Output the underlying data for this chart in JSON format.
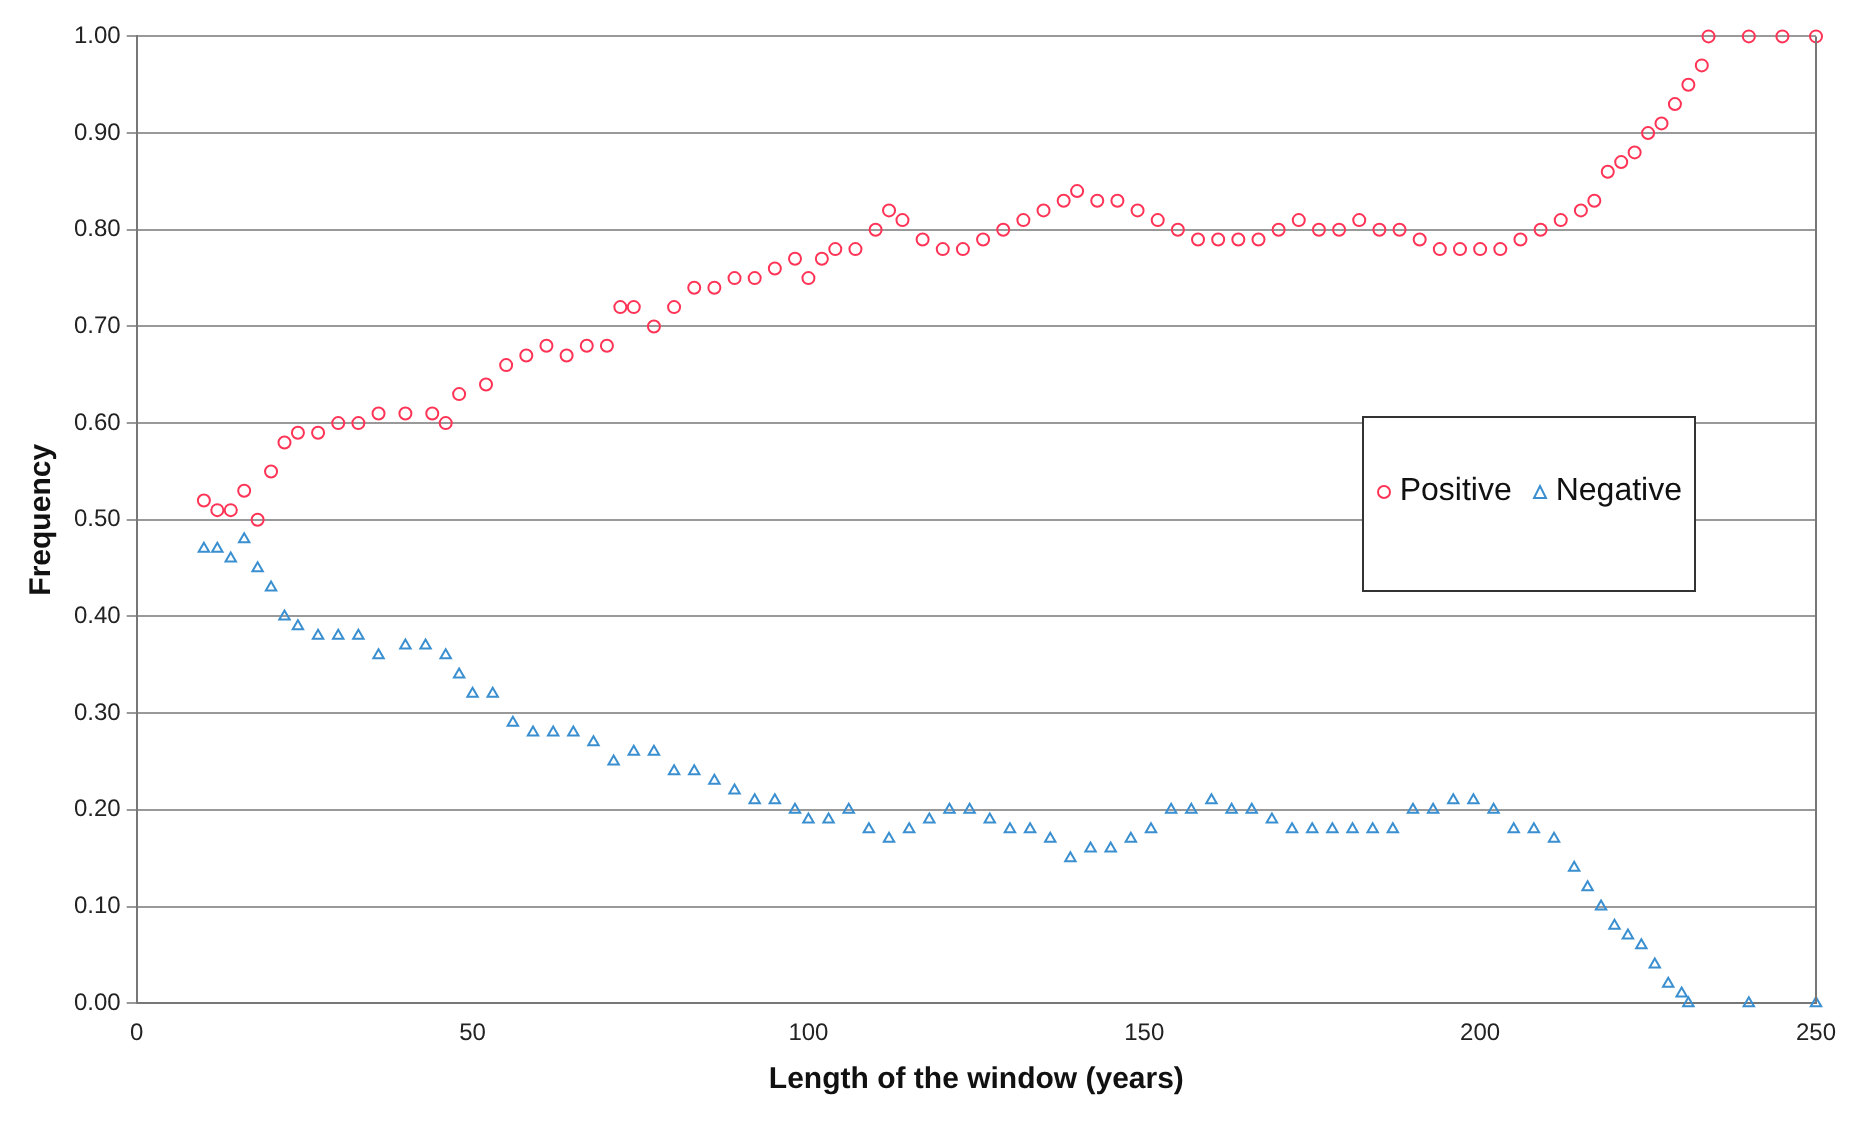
{
  "chart_data": {
    "type": "scatter",
    "xlabel": "Length of the window (years)",
    "ylabel": "Frequency",
    "xlim": [
      0,
      250
    ],
    "xticks": [
      0,
      50,
      100,
      150,
      200,
      250
    ],
    "ylim": [
      0,
      1
    ],
    "yticks": [
      {
        "value": 0,
        "label": "0.00"
      },
      {
        "value": 0.1,
        "label": "0.10"
      },
      {
        "value": 0.2,
        "label": "0.20"
      },
      {
        "value": 0.3,
        "label": "0.30"
      },
      {
        "value": 0.4,
        "label": "0.40"
      },
      {
        "value": 0.5,
        "label": "0.50"
      },
      {
        "value": 0.6,
        "label": "0.60"
      },
      {
        "value": 0.7,
        "label": "0.70"
      },
      {
        "value": 0.8,
        "label": "0.80"
      },
      {
        "value": 0.9,
        "label": "0.90"
      },
      {
        "value": 1,
        "label": "1.00"
      }
    ],
    "grid": "y",
    "legend": "right",
    "series": [
      {
        "name": "Positive",
        "color": "#ff3355",
        "marker": "circle",
        "x": [
          10,
          12,
          14,
          16,
          18,
          20,
          22,
          24,
          27,
          30,
          33,
          36,
          40,
          44,
          46,
          48,
          52,
          55,
          58,
          61,
          64,
          67,
          70,
          72,
          74,
          77,
          80,
          83,
          86,
          89,
          92,
          95,
          98,
          100,
          102,
          104,
          107,
          110,
          112,
          114,
          117,
          120,
          123,
          126,
          129,
          132,
          135,
          138,
          140,
          143,
          146,
          149,
          152,
          155,
          158,
          161,
          164,
          167,
          170,
          173,
          176,
          179,
          182,
          185,
          188,
          191,
          194,
          197,
          200,
          203,
          206,
          209,
          212,
          215,
          217,
          219,
          221,
          223,
          225,
          227,
          229,
          231,
          233,
          234,
          240,
          245,
          250
        ],
        "values": [
          0.52,
          0.51,
          0.51,
          0.53,
          0.5,
          0.55,
          0.58,
          0.59,
          0.59,
          0.6,
          0.6,
          0.61,
          0.61,
          0.61,
          0.6,
          0.63,
          0.64,
          0.66,
          0.67,
          0.68,
          0.67,
          0.68,
          0.68,
          0.72,
          0.72,
          0.7,
          0.72,
          0.74,
          0.74,
          0.75,
          0.75,
          0.76,
          0.77,
          0.75,
          0.77,
          0.78,
          0.78,
          0.8,
          0.82,
          0.81,
          0.79,
          0.78,
          0.78,
          0.79,
          0.8,
          0.81,
          0.82,
          0.83,
          0.84,
          0.83,
          0.83,
          0.82,
          0.81,
          0.8,
          0.79,
          0.79,
          0.79,
          0.79,
          0.8,
          0.81,
          0.8,
          0.8,
          0.81,
          0.8,
          0.8,
          0.79,
          0.78,
          0.78,
          0.78,
          0.78,
          0.79,
          0.8,
          0.81,
          0.82,
          0.83,
          0.86,
          0.87,
          0.88,
          0.9,
          0.91,
          0.93,
          0.95,
          0.97,
          1,
          1,
          1,
          1
        ]
      },
      {
        "name": "Negative",
        "color": "#3a8fd0",
        "marker": "triangle",
        "x": [
          10,
          12,
          14,
          16,
          18,
          20,
          22,
          24,
          27,
          30,
          33,
          36,
          40,
          43,
          46,
          48,
          50,
          53,
          56,
          59,
          62,
          65,
          68,
          71,
          74,
          77,
          80,
          83,
          86,
          89,
          92,
          95,
          98,
          100,
          103,
          106,
          109,
          112,
          115,
          118,
          121,
          124,
          127,
          130,
          133,
          136,
          139,
          142,
          145,
          148,
          151,
          154,
          157,
          160,
          163,
          166,
          169,
          172,
          175,
          178,
          181,
          184,
          187,
          190,
          193,
          196,
          199,
          202,
          205,
          208,
          211,
          214,
          216,
          218,
          220,
          222,
          224,
          226,
          228,
          230,
          231,
          240,
          250
        ],
        "values": [
          0.47,
          0.47,
          0.46,
          0.48,
          0.45,
          0.43,
          0.4,
          0.39,
          0.38,
          0.38,
          0.38,
          0.36,
          0.37,
          0.37,
          0.36,
          0.34,
          0.32,
          0.32,
          0.29,
          0.28,
          0.28,
          0.28,
          0.27,
          0.25,
          0.26,
          0.26,
          0.24,
          0.24,
          0.23,
          0.22,
          0.21,
          0.21,
          0.2,
          0.19,
          0.19,
          0.2,
          0.18,
          0.17,
          0.18,
          0.19,
          0.2,
          0.2,
          0.19,
          0.18,
          0.18,
          0.17,
          0.15,
          0.16,
          0.16,
          0.17,
          0.18,
          0.2,
          0.2,
          0.21,
          0.2,
          0.2,
          0.19,
          0.18,
          0.18,
          0.18,
          0.18,
          0.18,
          0.18,
          0.2,
          0.2,
          0.21,
          0.21,
          0.2,
          0.18,
          0.18,
          0.17,
          0.14,
          0.12,
          0.1,
          0.08,
          0.07,
          0.06,
          0.04,
          0.02,
          0.01,
          0,
          0,
          0
        ]
      }
    ]
  }
}
